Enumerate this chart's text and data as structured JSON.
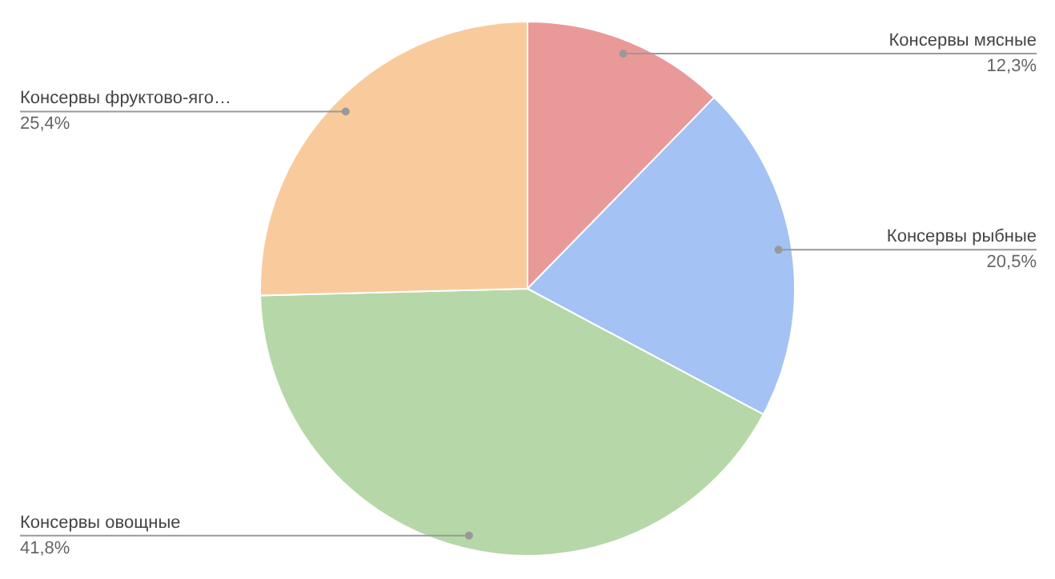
{
  "chart_data": {
    "type": "pie",
    "categories": [
      "Консервы мясные",
      "Консервы рыбные",
      "Консервы овощные",
      "Консервы фруктово-яго…"
    ],
    "values": [
      12.3,
      20.5,
      41.8,
      25.4
    ],
    "colors": [
      "#ea9999",
      "#a4c2f4",
      "#b6d7a8",
      "#f9cb9c"
    ],
    "value_labels": [
      "12,3%",
      "20,5%",
      "41,8%",
      "25,4%"
    ]
  }
}
